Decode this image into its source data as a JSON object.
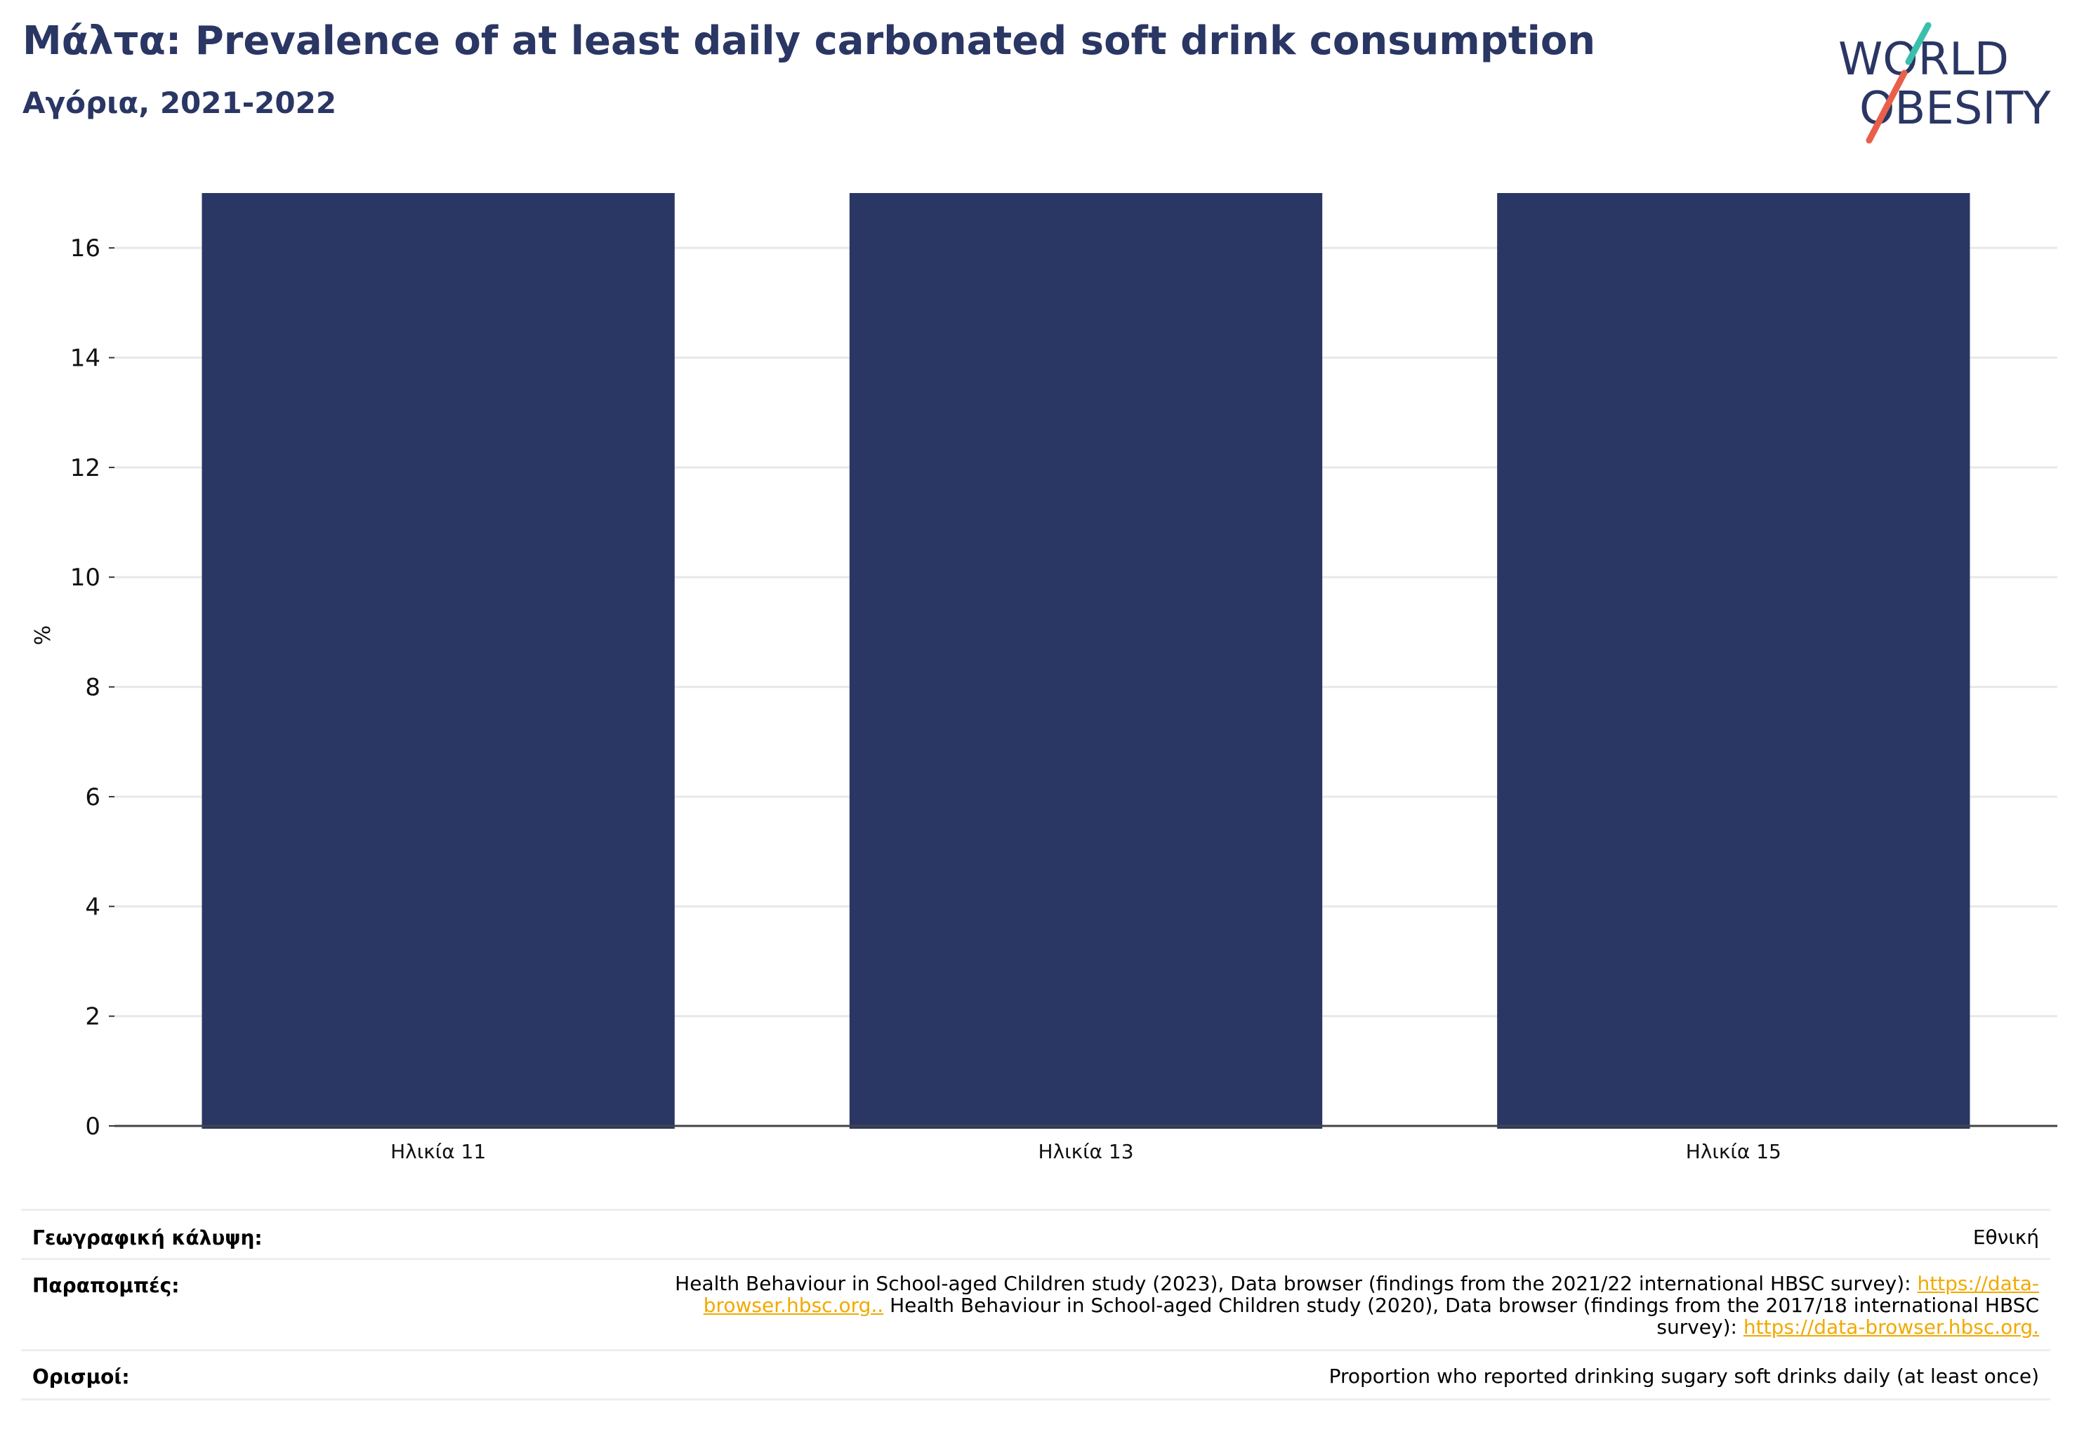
{
  "header": {
    "title": "Μάλτα: Prevalence of at least daily carbonated soft drink consumption",
    "subtitle": "Αγόρια, 2021-2022"
  },
  "logo": {
    "line1": "WORLD",
    "line2": "OBESITY"
  },
  "chart_data": {
    "type": "bar",
    "categories": [
      "Ηλικία 11",
      "Ηλικία 13",
      "Ηλικία 15"
    ],
    "values": [
      17,
      17,
      17
    ],
    "title": "",
    "xlabel": "",
    "ylabel": "%",
    "ylim": [
      0,
      17
    ],
    "yticks": [
      0,
      2,
      4,
      6,
      8,
      10,
      12,
      14,
      16
    ],
    "grid": true,
    "bar_color": "#2a3663"
  },
  "info": {
    "coverage_label": "Γεωγραφική κάλυψη:",
    "coverage_value": "Εθνική",
    "refs_label": "Παραπομπές:",
    "refs_line1_text": "Health Behaviour in School-aged Children study (2023), Data browser (findings from the 2021/22 international HBSC survey): ",
    "refs_line1_link": "https://data-",
    "refs_line2_link": "browser.hbsc.org..",
    "refs_line2_text": " Health Behaviour in School-aged Children study (2020), Data browser (findings from the 2017/18 international HBSC",
    "refs_line3_text": "survey): ",
    "refs_line3_link": "https://data-browser.hbsc.org.",
    "defs_label": "Ορισμοί:",
    "defs_value": "Proportion who reported drinking sugary soft drinks daily (at least once)"
  },
  "colors": {
    "title": "#2a3663",
    "bar": "#2a3663",
    "link": "#f2a900",
    "logo_teal": "#3bbfad",
    "logo_red": "#e8604c"
  }
}
